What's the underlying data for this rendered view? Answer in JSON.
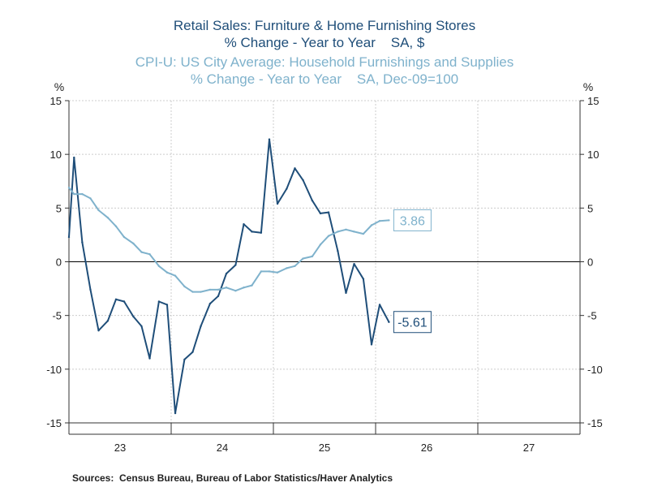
{
  "chart_data": {
    "type": "line",
    "title_1": "Retail Sales: Furniture & Home Furnishing Stores",
    "subtitle_1": "% Change - Year to Year    SA, $",
    "title_2": "CPI-U: US City Average: Household Furnishings and Supplies",
    "subtitle_2": "% Change - Year to Year    SA, Dec-09=100",
    "ylabel_left": "%",
    "ylabel_right": "%",
    "ylim": [
      -15,
      15
    ],
    "yticks": [
      15,
      10,
      5,
      0,
      -5,
      -10,
      -15
    ],
    "xlim": [
      2022.5,
      2027.5
    ],
    "xtick_labels": [
      {
        "label": "23",
        "x": 2023.0
      },
      {
        "label": "24",
        "x": 2024.0
      },
      {
        "label": "25",
        "x": 2025.0
      },
      {
        "label": "26",
        "x": 2026.0
      },
      {
        "label": "27",
        "x": 2027.0
      }
    ],
    "year_boundaries": [
      2023.5,
      2024.5,
      2025.5,
      2026.5
    ],
    "grid": true,
    "series": [
      {
        "color": "#1f4e79",
        "end_label": "-5.61",
        "points": [
          [
            2022.5,
            2.3
          ],
          [
            2022.55,
            9.7
          ],
          [
            2022.63,
            1.8
          ],
          [
            2022.71,
            -2.6
          ],
          [
            2022.79,
            -6.4
          ],
          [
            2022.88,
            -5.5
          ],
          [
            2022.96,
            -3.5
          ],
          [
            2023.04,
            -3.7
          ],
          [
            2023.13,
            -5.1
          ],
          [
            2023.21,
            -6.0
          ],
          [
            2023.29,
            -9.0
          ],
          [
            2023.38,
            -3.7
          ],
          [
            2023.46,
            -4.0
          ],
          [
            2023.54,
            -14.1
          ],
          [
            2023.63,
            -9.1
          ],
          [
            2023.71,
            -8.4
          ],
          [
            2023.79,
            -6.0
          ],
          [
            2023.88,
            -3.9
          ],
          [
            2023.96,
            -3.2
          ],
          [
            2024.04,
            -1.1
          ],
          [
            2024.13,
            -0.3
          ],
          [
            2024.21,
            3.5
          ],
          [
            2024.29,
            2.8
          ],
          [
            2024.38,
            2.7
          ],
          [
            2024.46,
            11.4
          ],
          [
            2024.54,
            5.4
          ],
          [
            2024.63,
            6.8
          ],
          [
            2024.71,
            8.7
          ],
          [
            2024.79,
            7.6
          ],
          [
            2024.88,
            5.7
          ],
          [
            2024.96,
            4.5
          ],
          [
            2025.04,
            4.6
          ],
          [
            2025.13,
            1.0
          ],
          [
            2025.21,
            -2.9
          ],
          [
            2025.29,
            -0.2
          ],
          [
            2025.38,
            -1.6
          ],
          [
            2025.46,
            -7.7
          ],
          [
            2025.54,
            -4.0
          ],
          [
            2025.63,
            -5.61
          ]
        ]
      },
      {
        "color": "#7fb2cc",
        "end_label": "3.86",
        "points": [
          [
            2022.5,
            6.9
          ],
          [
            2022.55,
            6.3
          ],
          [
            2022.63,
            6.3
          ],
          [
            2022.71,
            5.9
          ],
          [
            2022.79,
            4.8
          ],
          [
            2022.88,
            4.1
          ],
          [
            2022.96,
            3.3
          ],
          [
            2023.04,
            2.3
          ],
          [
            2023.13,
            1.7
          ],
          [
            2023.21,
            0.9
          ],
          [
            2023.29,
            0.7
          ],
          [
            2023.38,
            -0.4
          ],
          [
            2023.46,
            -1.0
          ],
          [
            2023.54,
            -1.3
          ],
          [
            2023.63,
            -2.3
          ],
          [
            2023.71,
            -2.8
          ],
          [
            2023.79,
            -2.8
          ],
          [
            2023.88,
            -2.6
          ],
          [
            2023.96,
            -2.6
          ],
          [
            2024.04,
            -2.4
          ],
          [
            2024.13,
            -2.7
          ],
          [
            2024.21,
            -2.4
          ],
          [
            2024.29,
            -2.2
          ],
          [
            2024.38,
            -0.9
          ],
          [
            2024.46,
            -0.9
          ],
          [
            2024.54,
            -1.0
          ],
          [
            2024.63,
            -0.6
          ],
          [
            2024.71,
            -0.4
          ],
          [
            2024.79,
            0.3
          ],
          [
            2024.88,
            0.5
          ],
          [
            2024.96,
            1.6
          ],
          [
            2025.04,
            2.4
          ],
          [
            2025.13,
            2.8
          ],
          [
            2025.21,
            3.0
          ],
          [
            2025.29,
            2.8
          ],
          [
            2025.38,
            2.6
          ],
          [
            2025.46,
            3.4
          ],
          [
            2025.54,
            3.8
          ],
          [
            2025.63,
            3.86
          ]
        ]
      }
    ]
  },
  "source_text": "Sources:  Census Bureau, Bureau of Labor Statistics/Haver Analytics"
}
